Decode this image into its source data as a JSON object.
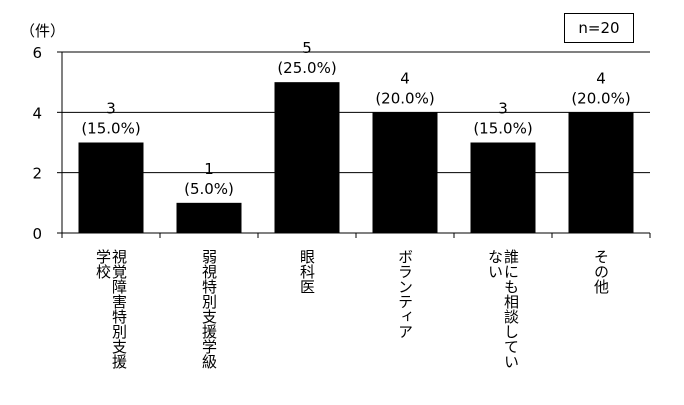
{
  "chart_data": {
    "type": "bar",
    "unit_label": "（件）",
    "sample_size": "n=20",
    "categories": [
      "視覚障害特別支援学校",
      "弱視特別支援学級",
      "眼科医",
      "ボランティア",
      "誰にも相談していない",
      "その他"
    ],
    "category_label_columns": [
      [
        "視覚障害特別支援",
        "学校"
      ],
      [
        "弱視特別支援学級"
      ],
      [
        "眼科医"
      ],
      [
        "ボランティア"
      ],
      [
        "誰にも相談してい",
        "ない"
      ],
      [
        "その他"
      ]
    ],
    "values": [
      3,
      1,
      5,
      4,
      3,
      4
    ],
    "value_labels": [
      "3",
      "1",
      "5",
      "4",
      "3",
      "4"
    ],
    "percent_labels": [
      "(15.0%)",
      "(5.0%)",
      "(25.0%)",
      "(20.0%)",
      "(15.0%)",
      "(20.0%)"
    ],
    "yticks": [
      "0",
      "2",
      "4",
      "6"
    ],
    "ylim": [
      0,
      6
    ],
    "grid": true,
    "bar_color": "#000000"
  }
}
